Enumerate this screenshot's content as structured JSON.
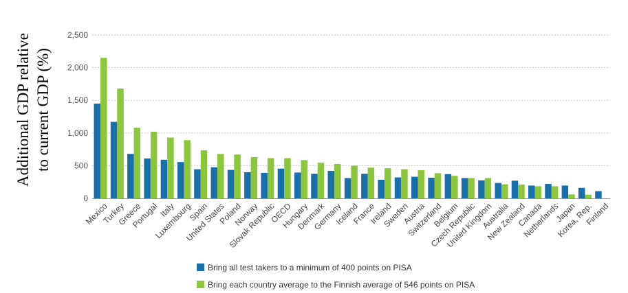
{
  "chart_data": {
    "type": "bar",
    "title": "",
    "xlabel": "",
    "ylabel_lines": [
      "Additional GDP relative",
      "to current GDP (%)"
    ],
    "ylim": [
      0,
      2500
    ],
    "yticks": [
      0,
      500,
      1000,
      1500,
      2000,
      2500
    ],
    "ytick_labels": [
      "0",
      "500",
      "1,000",
      "1,500",
      "2,000",
      "2,500"
    ],
    "grid": true,
    "legend_position": "bottom",
    "categories": [
      "Mexico",
      "Turkey",
      "Greece",
      "Portugal",
      "Italy",
      "Luxembourg",
      "Spain",
      "United States",
      "Poland",
      "Norway",
      "Slovak Republic",
      "OECD",
      "Hungary",
      "Denmark",
      "Germany",
      "Iceland",
      "France",
      "Ireland",
      "Sweden",
      "Austria",
      "Switzerland",
      "Belgium",
      "Czech Republic",
      "United Kingdom",
      "Australia",
      "New Zealand",
      "Canada",
      "Netherlands",
      "Japan",
      "Korea, Rep.",
      "Finland"
    ],
    "series": [
      {
        "name": "Bring all test takers to a minimum of 400 points on PISA",
        "color": "#1a6fa8",
        "values": [
          1450,
          1170,
          680,
          610,
          590,
          555,
          445,
          475,
          435,
          400,
          390,
          455,
          395,
          375,
          420,
          310,
          375,
          285,
          320,
          330,
          315,
          370,
          310,
          275,
          235,
          270,
          195,
          220,
          195,
          160,
          110
        ]
      },
      {
        "name": "Bring each country average to the Finnish average of 546 points on PISA",
        "color": "#8cc63f",
        "values": [
          2150,
          1680,
          1080,
          1020,
          930,
          890,
          735,
          680,
          670,
          630,
          615,
          615,
          585,
          545,
          525,
          500,
          470,
          460,
          445,
          430,
          385,
          345,
          310,
          310,
          215,
          210,
          185,
          185,
          60,
          55,
          0
        ]
      }
    ]
  }
}
